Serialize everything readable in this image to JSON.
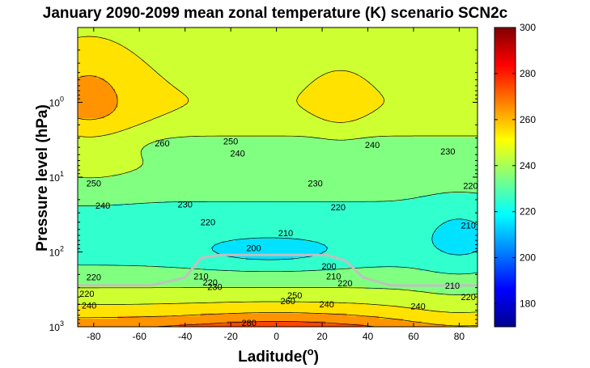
{
  "chart_data": {
    "type": "contour",
    "title": "January 2090-2099 mean zonal temperature (K) scenario SCN2c",
    "xlabel": "Laditude(",
    "xlabel_sup": "o",
    "xlabel_end": ")",
    "ylabel": "Pressure level (hPa)",
    "xlim": [
      -87,
      88
    ],
    "ylim_hPa": [
      0.1,
      1000
    ],
    "y_scale": "log",
    "y_reversed": true,
    "x_ticks": [
      -80,
      -60,
      -40,
      -20,
      0,
      20,
      40,
      60,
      80
    ],
    "x_tick_labels": [
      "-80",
      "-60",
      "-40",
      "-20",
      "0",
      "20",
      "40",
      "60",
      "80"
    ],
    "y_ticks": [
      {
        "value": 1,
        "base": "10",
        "exp": "0"
      },
      {
        "value": 10,
        "base": "10",
        "exp": "1"
      },
      {
        "value": 100,
        "base": "10",
        "exp": "2"
      },
      {
        "value": 1000,
        "base": "10",
        "exp": "3"
      }
    ],
    "colorbar": {
      "range": [
        170,
        300
      ],
      "ticks": [
        180,
        200,
        220,
        240,
        260,
        280,
        300
      ],
      "tick_labels": [
        "180",
        "200",
        "220",
        "240",
        "260",
        "280",
        "300"
      ],
      "colormap": "jet"
    },
    "contour_interval": 10,
    "contour_labels": [
      {
        "lat": -50,
        "p": 3.5,
        "text": "260"
      },
      {
        "lat": -20,
        "p": 3.3,
        "text": "250"
      },
      {
        "lat": -17,
        "p": 4.8,
        "text": "240"
      },
      {
        "lat": 42,
        "p": 3.7,
        "text": "240"
      },
      {
        "lat": 75,
        "p": 4.5,
        "text": "230"
      },
      {
        "lat": -80,
        "p": 12,
        "text": "250"
      },
      {
        "lat": 17,
        "p": 12,
        "text": "230"
      },
      {
        "lat": 85,
        "p": 13,
        "text": "220"
      },
      {
        "lat": -76,
        "p": 24,
        "text": "240"
      },
      {
        "lat": -40,
        "p": 23,
        "text": "230"
      },
      {
        "lat": 27,
        "p": 25,
        "text": "220"
      },
      {
        "lat": -30,
        "p": 40,
        "text": "220"
      },
      {
        "lat": 4,
        "p": 56,
        "text": "210"
      },
      {
        "lat": 84,
        "p": 44,
        "text": "210"
      },
      {
        "lat": -10,
        "p": 88,
        "text": "200"
      },
      {
        "lat": -80,
        "p": 215,
        "text": "220"
      },
      {
        "lat": -33,
        "p": 210,
        "text": "210"
      },
      {
        "lat": -29,
        "p": 255,
        "text": "220"
      },
      {
        "lat": -27,
        "p": 290,
        "text": "230"
      },
      {
        "lat": 25,
        "p": 210,
        "text": "210"
      },
      {
        "lat": 23,
        "p": 155,
        "text": "200"
      },
      {
        "lat": 30,
        "p": 260,
        "text": "220"
      },
      {
        "lat": 77,
        "p": 280,
        "text": "210"
      },
      {
        "lat": -83,
        "p": 360,
        "text": "220"
      },
      {
        "lat": -82,
        "p": 520,
        "text": "240"
      },
      {
        "lat": 8,
        "p": 380,
        "text": "250"
      },
      {
        "lat": 5,
        "p": 450,
        "text": "260"
      },
      {
        "lat": 22,
        "p": 500,
        "text": "240"
      },
      {
        "lat": -12,
        "p": 880,
        "text": "280"
      },
      {
        "lat": 62,
        "p": 530,
        "text": "240"
      },
      {
        "lat": 84,
        "p": 400,
        "text": "220"
      }
    ],
    "tropopause_line": {
      "color": "#c0c0c0",
      "points": [
        [
          -87,
          280
        ],
        [
          -55,
          280
        ],
        [
          -40,
          220
        ],
        [
          -33,
          120
        ],
        [
          -25,
          110
        ],
        [
          0,
          110
        ],
        [
          22,
          110
        ],
        [
          30,
          130
        ],
        [
          38,
          220
        ],
        [
          50,
          280
        ],
        [
          88,
          280
        ]
      ]
    }
  }
}
